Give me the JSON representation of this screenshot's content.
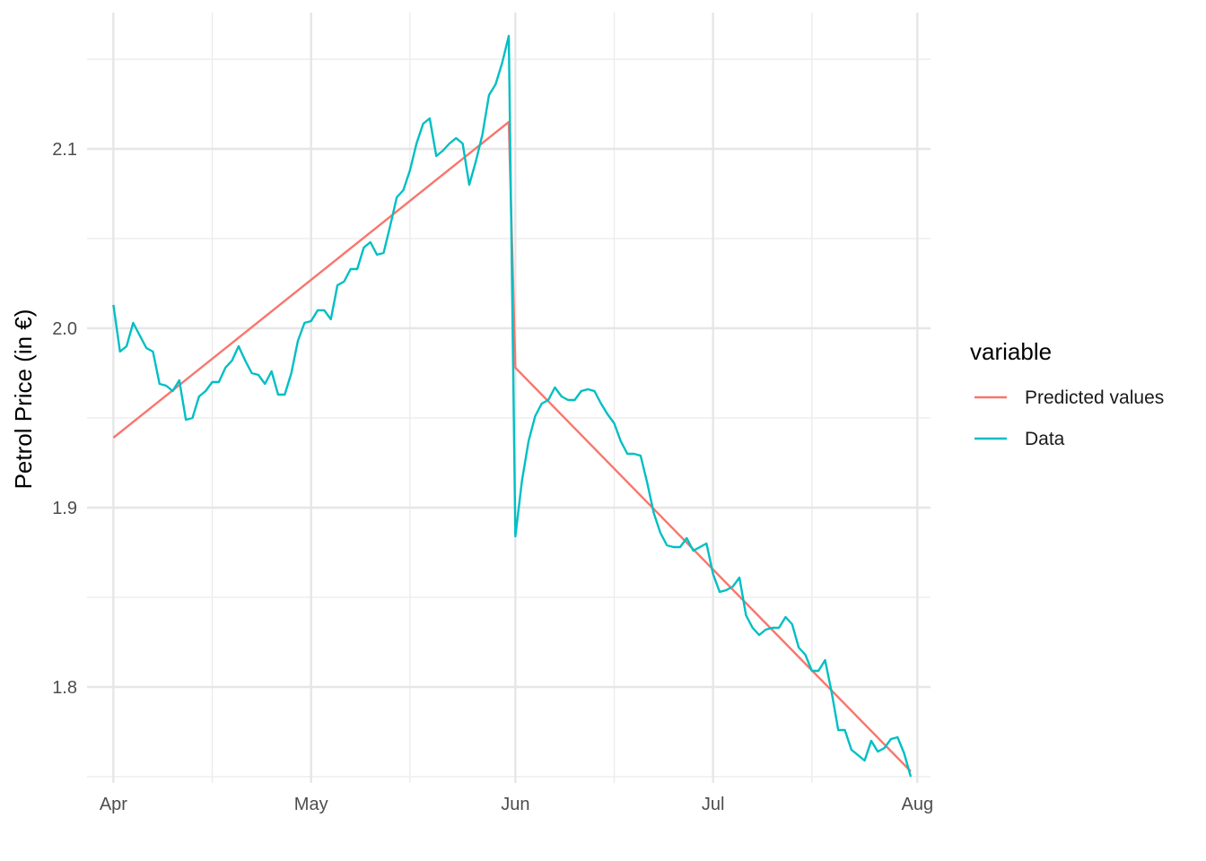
{
  "chart_data": {
    "type": "line",
    "title": "",
    "xlabel": "",
    "ylabel": "Petrol Price (in €)",
    "xlim": [
      "2022-03-28",
      "2022-08-03"
    ],
    "ylim": [
      1.7465,
      2.176
    ],
    "x_ticks": [
      {
        "date": "2022-04-01",
        "label": "Apr"
      },
      {
        "date": "2022-05-01",
        "label": "May"
      },
      {
        "date": "2022-06-01",
        "label": "Jun"
      },
      {
        "date": "2022-07-01",
        "label": "Jul"
      },
      {
        "date": "2022-08-01",
        "label": "Aug"
      }
    ],
    "x_minor_ticks": [
      "2022-04-16",
      "2022-05-16",
      "2022-06-16",
      "2022-07-16"
    ],
    "y_ticks": [
      1.8,
      1.9,
      2.0,
      2.1
    ],
    "y_minor_ticks": [
      1.75,
      1.85,
      1.95,
      2.05,
      2.15
    ],
    "grid": true,
    "legend": {
      "title": "variable",
      "position": "right",
      "entries": [
        {
          "label": "Predicted values",
          "color": "#F8766D"
        },
        {
          "label": "Data",
          "color": "#00BFC4"
        }
      ]
    },
    "series": [
      {
        "name": "Predicted values",
        "color": "#F8766D",
        "x": [
          "2022-04-01",
          "2022-05-31",
          "2022-06-01",
          "2022-07-31"
        ],
        "y": [
          1.939,
          2.115,
          1.978,
          1.753
        ]
      },
      {
        "name": "Data",
        "color": "#00BFC4",
        "x": [
          "2022-04-01",
          "2022-04-02",
          "2022-04-03",
          "2022-04-04",
          "2022-04-05",
          "2022-04-06",
          "2022-04-07",
          "2022-04-08",
          "2022-04-09",
          "2022-04-10",
          "2022-04-11",
          "2022-04-12",
          "2022-04-13",
          "2022-04-14",
          "2022-04-15",
          "2022-04-16",
          "2022-04-17",
          "2022-04-18",
          "2022-04-19",
          "2022-04-20",
          "2022-04-21",
          "2022-04-22",
          "2022-04-23",
          "2022-04-24",
          "2022-04-25",
          "2022-04-26",
          "2022-04-27",
          "2022-04-28",
          "2022-04-29",
          "2022-04-30",
          "2022-05-01",
          "2022-05-02",
          "2022-05-03",
          "2022-05-04",
          "2022-05-05",
          "2022-05-06",
          "2022-05-07",
          "2022-05-08",
          "2022-05-09",
          "2022-05-10",
          "2022-05-11",
          "2022-05-12",
          "2022-05-13",
          "2022-05-14",
          "2022-05-15",
          "2022-05-16",
          "2022-05-17",
          "2022-05-18",
          "2022-05-19",
          "2022-05-20",
          "2022-05-21",
          "2022-05-22",
          "2022-05-23",
          "2022-05-24",
          "2022-05-25",
          "2022-05-26",
          "2022-05-27",
          "2022-05-28",
          "2022-05-29",
          "2022-05-30",
          "2022-05-31",
          "2022-06-01",
          "2022-06-02",
          "2022-06-03",
          "2022-06-04",
          "2022-06-05",
          "2022-06-06",
          "2022-06-07",
          "2022-06-08",
          "2022-06-09",
          "2022-06-10",
          "2022-06-11",
          "2022-06-12",
          "2022-06-13",
          "2022-06-14",
          "2022-06-15",
          "2022-06-16",
          "2022-06-17",
          "2022-06-18",
          "2022-06-19",
          "2022-06-20",
          "2022-06-21",
          "2022-06-22",
          "2022-06-23",
          "2022-06-24",
          "2022-06-25",
          "2022-06-26",
          "2022-06-27",
          "2022-06-28",
          "2022-06-29",
          "2022-06-30",
          "2022-07-01",
          "2022-07-02",
          "2022-07-03",
          "2022-07-04",
          "2022-07-05",
          "2022-07-06",
          "2022-07-07",
          "2022-07-08",
          "2022-07-09",
          "2022-07-10",
          "2022-07-11",
          "2022-07-12",
          "2022-07-13",
          "2022-07-14",
          "2022-07-15",
          "2022-07-16",
          "2022-07-17",
          "2022-07-18",
          "2022-07-19",
          "2022-07-20",
          "2022-07-21",
          "2022-07-22",
          "2022-07-23",
          "2022-07-24",
          "2022-07-25",
          "2022-07-26",
          "2022-07-27",
          "2022-07-28",
          "2022-07-29",
          "2022-07-30",
          "2022-07-31"
        ],
        "y": [
          2.013,
          1.987,
          1.99,
          2.003,
          1.996,
          1.989,
          1.987,
          1.969,
          1.968,
          1.965,
          1.971,
          1.949,
          1.95,
          1.962,
          1.965,
          1.97,
          1.97,
          1.978,
          1.982,
          1.99,
          1.982,
          1.975,
          1.974,
          1.969,
          1.976,
          1.963,
          1.963,
          1.975,
          1.993,
          2.003,
          2.004,
          2.01,
          2.01,
          2.005,
          2.024,
          2.026,
          2.033,
          2.033,
          2.045,
          2.048,
          2.041,
          2.042,
          2.057,
          2.073,
          2.077,
          2.088,
          2.103,
          2.114,
          2.117,
          2.096,
          2.099,
          2.103,
          2.106,
          2.103,
          2.08,
          2.093,
          2.108,
          2.13,
          2.136,
          2.148,
          2.163,
          1.884,
          1.915,
          1.937,
          1.951,
          1.958,
          1.96,
          1.967,
          1.962,
          1.96,
          1.96,
          1.965,
          1.966,
          1.965,
          1.958,
          1.952,
          1.947,
          1.937,
          1.93,
          1.93,
          1.929,
          1.914,
          1.897,
          1.886,
          1.879,
          1.878,
          1.878,
          1.883,
          1.876,
          1.878,
          1.88,
          1.863,
          1.853,
          1.854,
          1.856,
          1.861,
          1.84,
          1.833,
          1.829,
          1.832,
          1.833,
          1.833,
          1.839,
          1.835,
          1.822,
          1.818,
          1.809,
          1.809,
          1.815,
          1.797,
          1.776,
          1.776,
          1.765,
          1.762,
          1.759,
          1.77,
          1.764,
          1.766,
          1.771,
          1.772,
          1.763,
          1.75
        ]
      }
    ]
  }
}
